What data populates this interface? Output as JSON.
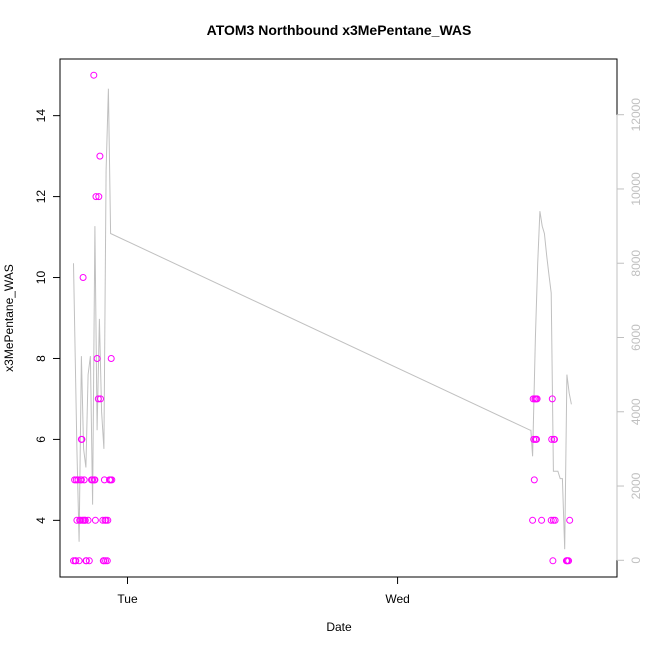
{
  "chart_data": {
    "type": "scatter",
    "title": "ATOM3 Northbound x3MePentane_WAS",
    "xlabel": "Date",
    "ylabel": "x3MePentane_WAS",
    "x_ticks": [
      "Tue",
      "Wed"
    ],
    "ylim": [
      2.6,
      15.4
    ],
    "y_ticks": [
      4,
      6,
      8,
      10,
      12,
      14
    ],
    "y2lim": [
      -450,
      13500
    ],
    "y2_ticks": [
      0,
      2000,
      4000,
      6000,
      8000,
      10000,
      12000
    ],
    "xlim_hours": [
      -6.0,
      43.5
    ],
    "colors": {
      "points": "#ff00ff",
      "line": "#c0c0c0",
      "axis": "#000000",
      "right_axis": "#c0c0c0"
    },
    "series": [
      {
        "type": "scatter",
        "x_hours": [
          -4.8,
          -4.7,
          -4.65,
          -4.6,
          -4.55,
          -4.5,
          -4.4,
          -4.3,
          -4.25,
          -4.2,
          -4.15,
          -4.1,
          -4.1,
          -4.05,
          -4.0,
          -3.95,
          -3.9,
          -3.85,
          -3.8,
          -3.75,
          -3.7,
          -3.65,
          -3.5,
          -3.4,
          -3.2,
          -3.1,
          -3.0,
          -2.95,
          -2.9,
          -2.85,
          -2.8,
          -2.7,
          -2.6,
          -2.55,
          -2.45,
          -2.4,
          -2.2,
          -2.15,
          -2.1,
          -2.05,
          -2.0,
          -1.95,
          -1.9,
          -1.8,
          -1.75,
          -1.6,
          -1.5,
          -1.45,
          -1.4,
          36.0,
          36.05,
          36.1,
          36.15,
          36.2,
          36.25,
          36.3,
          36.35,
          36.4,
          36.8,
          37.65,
          37.7,
          37.75,
          37.8,
          37.85,
          37.9,
          37.95,
          38.0,
          39.0,
          39.05,
          39.1,
          39.2,
          39.3
        ],
        "y": [
          3,
          5,
          3,
          3,
          5,
          4,
          5,
          3,
          4,
          5,
          4,
          5,
          6,
          6,
          4,
          10,
          4,
          5,
          4,
          4,
          3,
          3,
          4,
          3,
          5,
          5,
          15,
          5,
          5,
          4,
          12,
          8,
          7,
          12,
          13,
          7,
          4,
          3,
          3,
          5,
          4,
          3,
          4,
          3,
          4,
          5,
          5,
          8,
          5,
          4,
          7,
          6,
          5,
          7,
          6,
          7,
          6,
          7,
          4,
          4,
          6,
          7,
          3,
          4,
          6,
          6,
          4,
          3,
          3,
          3,
          3,
          4
        ]
      },
      {
        "type": "line",
        "axis": "right",
        "x_hours": [
          -4.8,
          -4.5,
          -4.3,
          -4.1,
          -3.9,
          -3.7,
          -3.5,
          -3.3,
          -3.1,
          -2.9,
          -2.7,
          -2.5,
          -2.3,
          -2.1,
          -1.9,
          -1.7,
          -1.5,
          35.8,
          35.85,
          36.0,
          36.25,
          36.45,
          36.65,
          36.85,
          37.05,
          37.25,
          37.45,
          37.65,
          37.85,
          38.05,
          38.25,
          38.45,
          38.65,
          38.85,
          39.05,
          39.25,
          39.45
        ],
        "y2": [
          8000,
          3000,
          500,
          5500,
          3000,
          2500,
          5000,
          5500,
          1500,
          9000,
          3500,
          6500,
          4000,
          3000,
          10500,
          12700,
          8800,
          3500,
          3500,
          2800,
          6000,
          8000,
          9400,
          9000,
          8800,
          8200,
          7700,
          7200,
          2400,
          2400,
          2400,
          2200,
          2200,
          300,
          5000,
          4500,
          4200
        ]
      }
    ]
  }
}
